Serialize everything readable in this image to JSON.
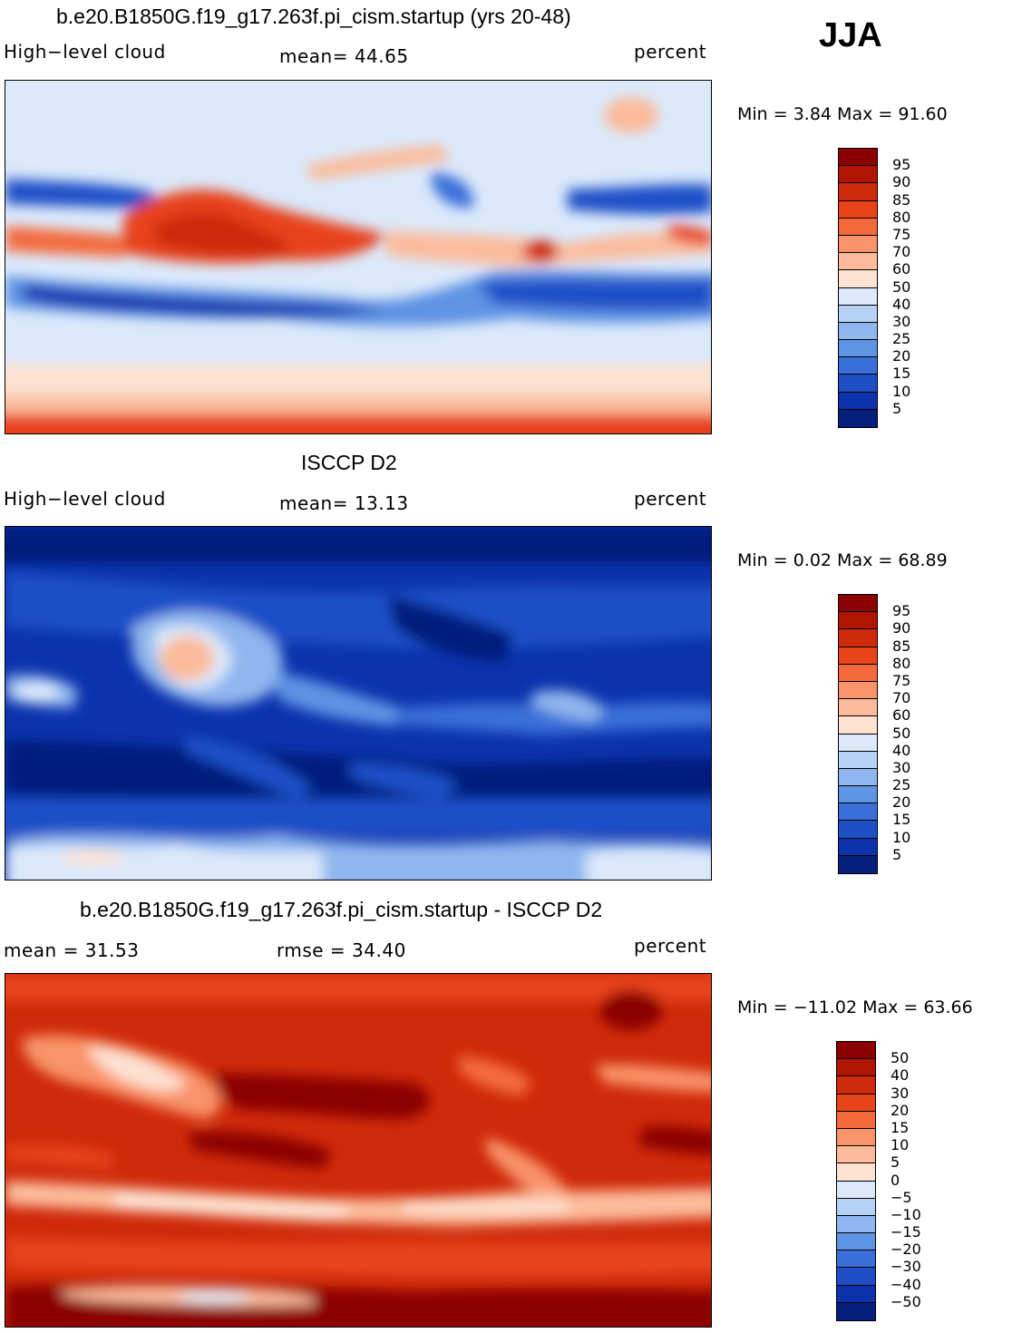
{
  "season": "JJA",
  "panels": [
    {
      "id": "model",
      "title": "b.e20.B1850G.f19_g17.263f.pi_cism.startup (yrs 20-48)",
      "left_label": "High−level cloud",
      "center_label": "mean=  44.65",
      "right_label": "percent",
      "minmax": "Min =    3.84 Max =   91.60",
      "legend": {
        "labels": [
          "95",
          "90",
          "85",
          "80",
          "75",
          "70",
          "60",
          "50",
          "40",
          "30",
          "25",
          "20",
          "15",
          "10",
          "5"
        ],
        "colors": [
          "#8b0000",
          "#b01500",
          "#cf2a0a",
          "#e8431a",
          "#f46a3d",
          "#f99369",
          "#fcbb9b",
          "#fde2d2",
          "#dbe9fb",
          "#b6d1f5",
          "#8fb6ee",
          "#5f93e4",
          "#3a6fd8",
          "#1e4fc7",
          "#0c33ad",
          "#061f7d"
        ]
      }
    },
    {
      "id": "obs",
      "title": "ISCCP D2",
      "left_label": "High−level cloud",
      "center_label": "mean=  13.13",
      "right_label": "percent",
      "minmax": "Min =    0.02 Max =   68.89",
      "legend": {
        "labels": [
          "95",
          "90",
          "85",
          "80",
          "75",
          "70",
          "60",
          "50",
          "40",
          "30",
          "25",
          "20",
          "15",
          "10",
          "5"
        ],
        "colors": [
          "#8b0000",
          "#b01500",
          "#cf2a0a",
          "#e8431a",
          "#f46a3d",
          "#f99369",
          "#fcbb9b",
          "#fde2d2",
          "#dbe9fb",
          "#b6d1f5",
          "#8fb6ee",
          "#5f93e4",
          "#3a6fd8",
          "#1e4fc7",
          "#0c33ad",
          "#061f7d"
        ]
      }
    },
    {
      "id": "diff",
      "title": "b.e20.B1850G.f19_g17.263f.pi_cism.startup - ISCCP D2",
      "left_label": "mean =   31.53",
      "center_label": "rmse =   34.40",
      "right_label": "percent",
      "minmax": "Min = −11.02 Max =   63.66",
      "legend": {
        "labels": [
          "50",
          "40",
          "30",
          "20",
          "15",
          "10",
          "5",
          "0",
          "−5",
          "−10",
          "−15",
          "−20",
          "−30",
          "−40",
          "−50"
        ],
        "colors": [
          "#8b0000",
          "#b01500",
          "#cf2a0a",
          "#e8431a",
          "#f46a3d",
          "#f99369",
          "#fcbb9b",
          "#fde2d2",
          "#dbe9fb",
          "#b6d1f5",
          "#8fb6ee",
          "#5f93e4",
          "#3a6fd8",
          "#1e4fc7",
          "#0c33ad",
          "#061f7d"
        ]
      }
    }
  ]
}
